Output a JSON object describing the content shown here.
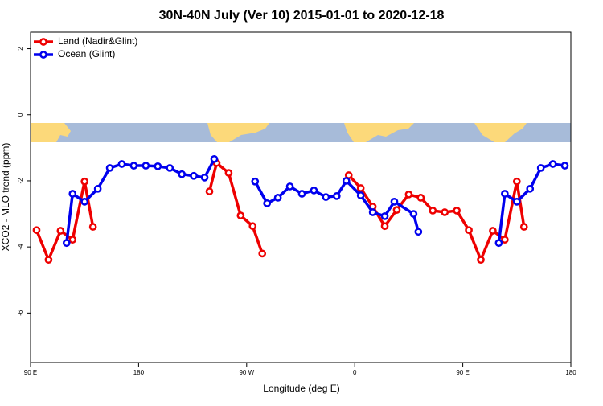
{
  "chart_data": {
    "type": "line",
    "title": "30N-40N July (Ver 10)   2015-01-01 to 2020-12-18",
    "xlabel": "Longitude (deg E)",
    "ylabel": "XCO2 - MLO trend (ppm)",
    "xlim": [
      90,
      540
    ],
    "ylim": [
      -7.5,
      2.5
    ],
    "xticks": [
      {
        "value": 90,
        "label": "90 E"
      },
      180,
      {
        "value": 270,
        "label": "90 W"
      },
      {
        "value": 360,
        "label": "0"
      },
      {
        "value": 450,
        "label": "90 E"
      },
      {
        "value": 540,
        "label": "180"
      }
    ],
    "yticks": [
      2,
      0,
      -2,
      -4,
      -6
    ],
    "legend": "top-left",
    "series": [
      {
        "name": "Land (Nadir&Glint)",
        "color": "#ee0000",
        "x": [
          95,
          105,
          115,
          125,
          135,
          142,
          null,
          239,
          245,
          255,
          265,
          275,
          283,
          null,
          355,
          365,
          375,
          385,
          395,
          405,
          415,
          425,
          435,
          445,
          455,
          465,
          475,
          485,
          495,
          501
        ],
        "values": [
          -3.49,
          -4.39,
          -3.51,
          -3.78,
          -2.02,
          -3.39,
          null,
          -2.32,
          -1.46,
          -1.76,
          -3.05,
          -3.37,
          -4.2,
          null,
          -1.83,
          -2.22,
          -2.78,
          -3.37,
          -2.88,
          -2.41,
          -2.51,
          -2.9,
          -2.95,
          -2.9,
          -3.49,
          -4.39,
          -3.51,
          -3.78,
          -2.02,
          -3.39
        ]
      },
      {
        "name": "Ocean (Glint)",
        "color": "#0000ee",
        "x": [
          120,
          125,
          135,
          146,
          156,
          166,
          176,
          186,
          196,
          206,
          216,
          226,
          235,
          243,
          null,
          277,
          287,
          296,
          306,
          316,
          326,
          336,
          345,
          353,
          365,
          375,
          385,
          393,
          409,
          413,
          null,
          480,
          485,
          495,
          506,
          515,
          525,
          535
        ],
        "values": [
          -3.88,
          -2.39,
          -2.63,
          -2.24,
          -1.61,
          -1.49,
          -1.54,
          -1.54,
          -1.56,
          -1.61,
          -1.8,
          -1.85,
          -1.9,
          -1.34,
          null,
          -2.02,
          -2.68,
          -2.51,
          -2.17,
          -2.39,
          -2.29,
          -2.49,
          -2.46,
          -2.0,
          -2.44,
          -2.95,
          -3.07,
          -2.63,
          -3.0,
          -3.54,
          null,
          -3.88,
          -2.39,
          -2.63,
          -2.24,
          -1.61,
          -1.49,
          -1.54
        ]
      }
    ]
  }
}
